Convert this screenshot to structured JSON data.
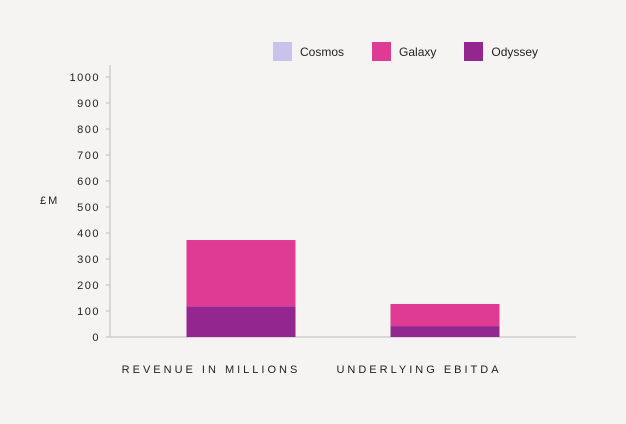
{
  "chart_data": {
    "type": "bar",
    "stacked": true,
    "categories": [
      "REVENUE IN MILLIONS",
      "UNDERLYING EBITDA"
    ],
    "series": [
      {
        "name": "Cosmos",
        "color": "#c9c3ec",
        "values": [
          0,
          0
        ]
      },
      {
        "name": "Galaxy",
        "color": "#e03b94",
        "values": [
          255,
          85
        ]
      },
      {
        "name": "Odyssey",
        "color": "#93278f",
        "values": [
          118,
          42
        ]
      }
    ],
    "ylabel": "£M",
    "ylim": [
      0,
      1000
    ],
    "yticks": [
      0,
      100,
      200,
      300,
      400,
      500,
      600,
      700,
      800,
      900,
      1000
    ],
    "legend_position": "top",
    "grid": false
  }
}
